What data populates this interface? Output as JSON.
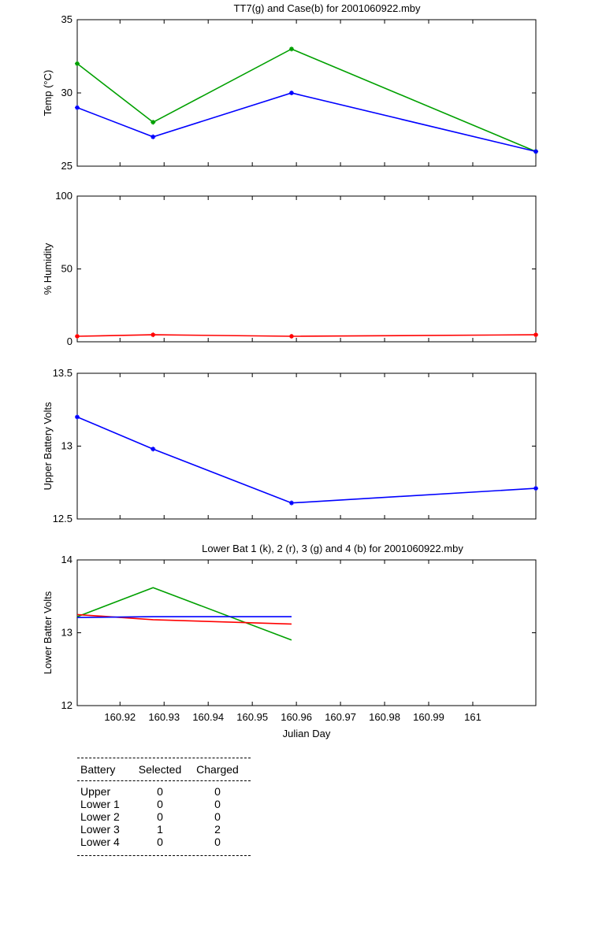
{
  "chart_data": [
    {
      "type": "line",
      "title": "TT7(g) and Case(b) for 2001060922.mby",
      "xlabel": "",
      "ylabel": "Temp (°C)",
      "xlim": [
        160.9103,
        161.0143
      ],
      "ylim": [
        25,
        35
      ],
      "yticks": [
        25,
        30,
        35
      ],
      "grid": false,
      "series": [
        {
          "color": "#00a000",
          "marker": "*",
          "x": [
            160.9103,
            160.9275,
            160.9589,
            161.0143
          ],
          "y": [
            32,
            28,
            33,
            26
          ]
        },
        {
          "color": "#0000ff",
          "marker": "*",
          "x": [
            160.9103,
            160.9275,
            160.9589,
            161.0143
          ],
          "y": [
            29,
            27,
            30,
            26
          ]
        }
      ]
    },
    {
      "type": "line",
      "title": "",
      "xlabel": "",
      "ylabel": "% Humidity",
      "xlim": [
        160.9103,
        161.0143
      ],
      "ylim": [
        0,
        100
      ],
      "yticks": [
        0,
        50,
        100
      ],
      "grid": false,
      "series": [
        {
          "color": "#ff0000",
          "marker": "*",
          "x": [
            160.9103,
            160.9275,
            160.9589,
            161.0143
          ],
          "y": [
            3.8,
            4.8,
            3.8,
            4.8
          ]
        }
      ]
    },
    {
      "type": "line",
      "title": "",
      "xlabel": "",
      "ylabel": "Upper Battery Volts",
      "xlim": [
        160.9103,
        161.0143
      ],
      "ylim": [
        12.5,
        13.5
      ],
      "yticks": [
        12.5,
        13,
        13.5
      ],
      "grid": false,
      "series": [
        {
          "color": "#0000ff",
          "marker": "*",
          "x": [
            160.9103,
            160.9275,
            160.9589,
            161.0143
          ],
          "y": [
            13.2,
            12.98,
            12.61,
            12.71
          ]
        }
      ]
    },
    {
      "type": "line",
      "title": "Lower Bat 1 (k), 2 (r), 3 (g) and 4 (b) for 2001060922.mby",
      "xlabel": "Julian Day",
      "ylabel": "Lower Batter Volts",
      "xlim": [
        160.9103,
        161.0143
      ],
      "ylim": [
        12,
        14
      ],
      "yticks": [
        12,
        13,
        14
      ],
      "xticks": [
        160.92,
        160.93,
        160.94,
        160.95,
        160.96,
        160.97,
        160.98,
        160.99,
        161
      ],
      "xtick_labels": [
        "160.92",
        "160.93",
        "160.94",
        "160.95",
        "160.96",
        "160.97",
        "160.98",
        "160.99",
        "161"
      ],
      "grid": false,
      "series": [
        {
          "color": "#00a000",
          "marker": "",
          "x": [
            160.9103,
            160.9275,
            160.9589
          ],
          "y": [
            13.22,
            13.62,
            12.9
          ]
        },
        {
          "color": "#ff0000",
          "marker": "",
          "x": [
            160.9103,
            160.9275,
            160.9589
          ],
          "y": [
            13.25,
            13.18,
            13.12
          ]
        },
        {
          "color": "#0000ff",
          "marker": "",
          "x": [
            160.9103,
            160.9275,
            160.9589
          ],
          "y": [
            13.21,
            13.22,
            13.22
          ]
        }
      ]
    }
  ],
  "battery_table": {
    "headers": [
      "Battery",
      "Selected",
      "Charged"
    ],
    "rows": [
      {
        "name": "Upper",
        "selected": "0",
        "charged": "0"
      },
      {
        "name": "Lower 1",
        "selected": "0",
        "charged": "0"
      },
      {
        "name": "Lower 2",
        "selected": "0",
        "charged": "0"
      },
      {
        "name": "Lower 3",
        "selected": "1",
        "charged": "2"
      },
      {
        "name": "Lower 4",
        "selected": "0",
        "charged": "0"
      }
    ]
  }
}
